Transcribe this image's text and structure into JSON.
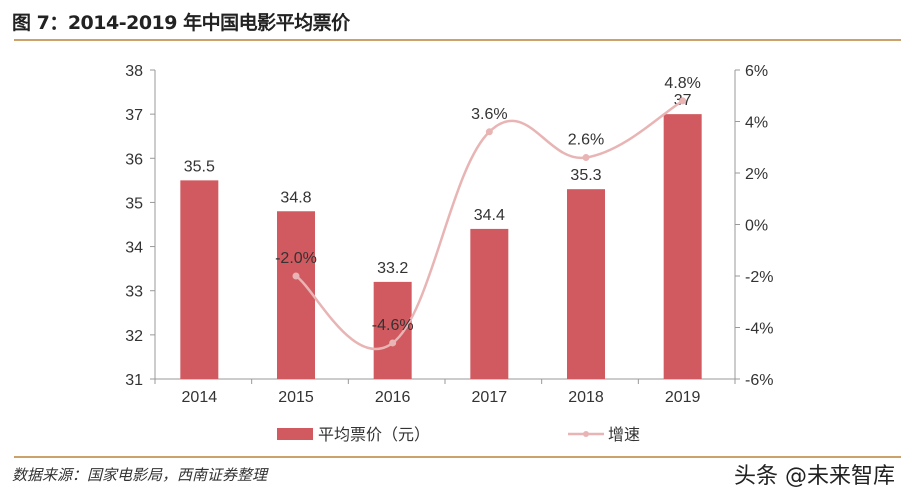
{
  "title": "图 7：2014-2019 年中国电影平均票价",
  "source": "数据来源：国家电影局，西南证券整理",
  "watermark": "头条 @未来智库",
  "colors": {
    "bar": "#d05a60",
    "line": "#e8b4b4",
    "rule": "#c9a36a"
  },
  "chart_data": {
    "type": "bar+line",
    "categories": [
      "2014",
      "2015",
      "2016",
      "2017",
      "2018",
      "2019"
    ],
    "series": [
      {
        "name": "平均票价（元）",
        "type": "bar",
        "axis": "left",
        "values": [
          35.5,
          34.8,
          33.2,
          34.4,
          35.3,
          37
        ],
        "labels": [
          "35.5",
          "34.8",
          "33.2",
          "34.4",
          "35.3",
          "37"
        ]
      },
      {
        "name": "增速",
        "type": "line",
        "axis": "right",
        "values": [
          null,
          -2.0,
          -4.6,
          3.6,
          2.6,
          4.8
        ],
        "labels": [
          "",
          "-2.0%",
          "-4.6%",
          "3.6%",
          "2.6%",
          "4.8%"
        ]
      }
    ],
    "left_axis": {
      "ylim": [
        31,
        38
      ],
      "ticks": [
        "31",
        "32",
        "33",
        "34",
        "35",
        "36",
        "37",
        "38"
      ]
    },
    "right_axis": {
      "ylim": [
        -6,
        6
      ],
      "ticks": [
        "-6%",
        "-4%",
        "-2%",
        "0%",
        "2%",
        "4%",
        "6%"
      ]
    },
    "legend": {
      "placement": "bottom",
      "entries": [
        "平均票价（元）",
        "增速"
      ]
    },
    "grid": false
  }
}
